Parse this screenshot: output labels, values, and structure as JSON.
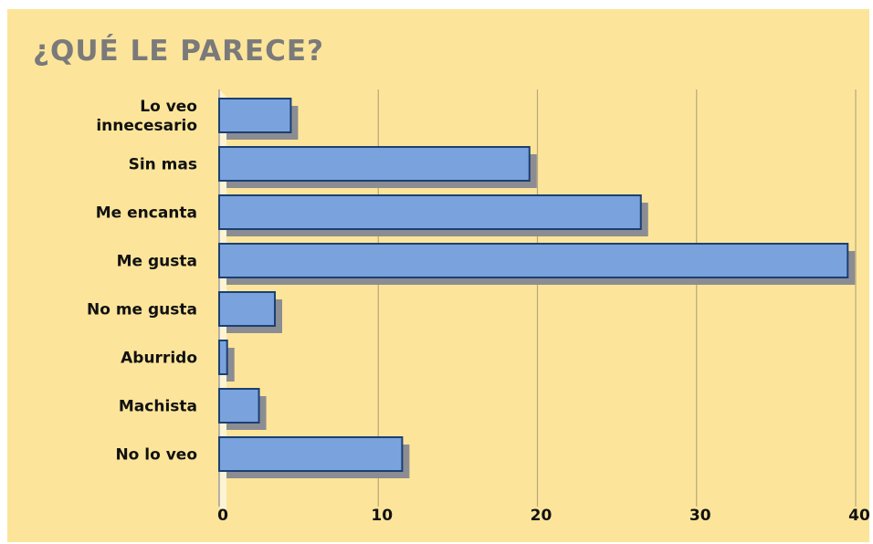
{
  "chart_data": {
    "type": "bar",
    "orientation": "horizontal",
    "title": "¿QUÉ LE PARECE?",
    "categories": [
      [
        "Lo veo",
        "innecesario"
      ],
      [
        "Sin mas"
      ],
      [
        "Me encanta"
      ],
      [
        "Me gusta"
      ],
      [
        "No me gusta"
      ],
      [
        "Aburrido"
      ],
      [
        "Machista"
      ],
      [
        "No lo veo"
      ]
    ],
    "values": [
      4.5,
      19.5,
      26.5,
      39.5,
      3.5,
      0.5,
      2.5,
      11.5
    ],
    "xlim": [
      0,
      40
    ],
    "xticks": [
      0,
      10,
      20,
      30,
      40
    ],
    "grid": true,
    "colors": {
      "bar": "#7aa2dc",
      "bar_border": "#1c3f73",
      "shadow": "#8b8d92",
      "background": "#fce59a",
      "grid": "#b9a779",
      "title": "#7a7a7a"
    }
  }
}
